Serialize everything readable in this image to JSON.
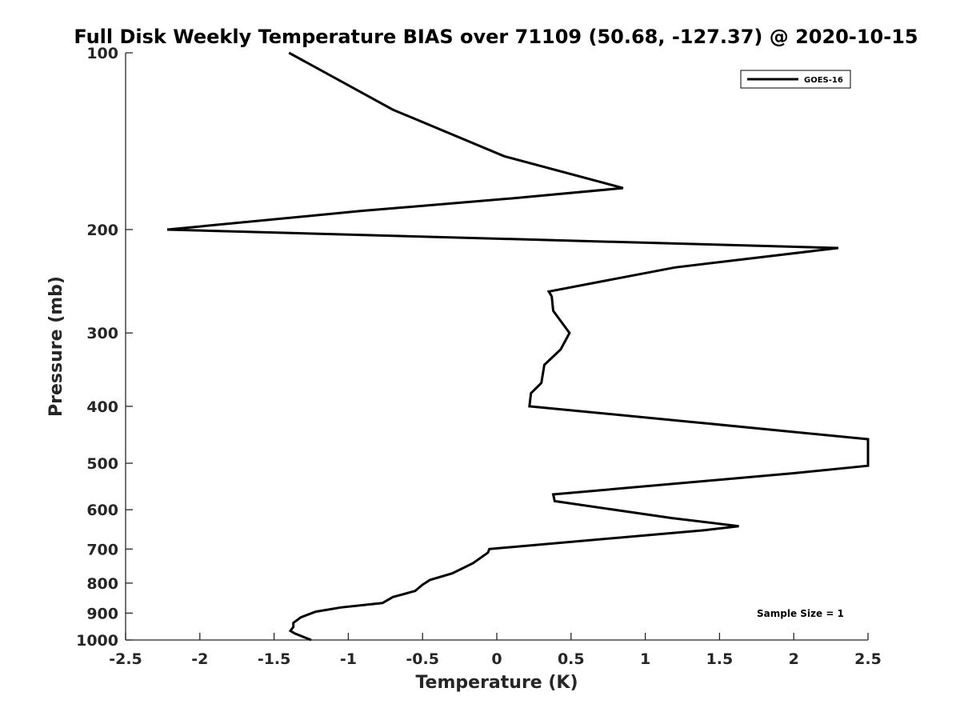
{
  "chart_data": {
    "type": "line",
    "title": "Full Disk Weekly Temperature BIAS over 71109 (50.68, -127.37) @ 2020-10-15",
    "xlabel": "Temperature (K)",
    "ylabel": "Pressure (mb)",
    "xlim": [
      -2.5,
      2.5
    ],
    "ylim": [
      100,
      1000
    ],
    "y_scale": "log",
    "y_reversed": true,
    "grid": false,
    "x_ticks": [
      -2.5,
      -2,
      -1.5,
      -1,
      -0.5,
      0,
      0.5,
      1,
      1.5,
      2,
      2.5
    ],
    "x_tick_labels": [
      "-2.5",
      "-2",
      "-1.5",
      "-1",
      "-0.5",
      "0",
      "0.5",
      "1",
      "1.5",
      "2",
      "2.5"
    ],
    "y_ticks": [
      100,
      200,
      300,
      400,
      500,
      600,
      700,
      800,
      900,
      1000
    ],
    "y_tick_labels": [
      "100",
      "200",
      "300",
      "400",
      "500",
      "600",
      "700",
      "800",
      "900",
      "1000"
    ],
    "legend_position": "top-right",
    "annotation": "Sample Size = 1",
    "series": [
      {
        "name": "GOES-16",
        "color": "#000000",
        "points": [
          {
            "x": -1.4,
            "p": 100
          },
          {
            "x": -0.7,
            "p": 125
          },
          {
            "x": 0.05,
            "p": 150
          },
          {
            "x": 0.85,
            "p": 170
          },
          {
            "x": 0.1,
            "p": 177
          },
          {
            "x": -0.92,
            "p": 186
          },
          {
            "x": -2.22,
            "p": 200
          },
          {
            "x": 2.3,
            "p": 215
          },
          {
            "x": 1.2,
            "p": 232
          },
          {
            "x": 0.35,
            "p": 255
          },
          {
            "x": 0.37,
            "p": 260
          },
          {
            "x": 0.38,
            "p": 275
          },
          {
            "x": 0.49,
            "p": 300
          },
          {
            "x": 0.43,
            "p": 320
          },
          {
            "x": 0.32,
            "p": 340
          },
          {
            "x": 0.3,
            "p": 365
          },
          {
            "x": 0.23,
            "p": 380
          },
          {
            "x": 0.22,
            "p": 400
          },
          {
            "x": 1.3,
            "p": 425
          },
          {
            "x": 2.5,
            "p": 455
          },
          {
            "x": 2.5,
            "p": 505
          },
          {
            "x": 2.0,
            "p": 520
          },
          {
            "x": 0.38,
            "p": 565
          },
          {
            "x": 0.39,
            "p": 580
          },
          {
            "x": 1.18,
            "p": 620
          },
          {
            "x": 1.63,
            "p": 640
          },
          {
            "x": 1.4,
            "p": 650
          },
          {
            "x": -0.05,
            "p": 700
          },
          {
            "x": -0.06,
            "p": 710
          },
          {
            "x": -0.16,
            "p": 740
          },
          {
            "x": -0.3,
            "p": 770
          },
          {
            "x": -0.45,
            "p": 790
          },
          {
            "x": -0.5,
            "p": 805
          },
          {
            "x": -0.55,
            "p": 825
          },
          {
            "x": -0.7,
            "p": 845
          },
          {
            "x": -0.77,
            "p": 865
          },
          {
            "x": -1.05,
            "p": 880
          },
          {
            "x": -1.22,
            "p": 895
          },
          {
            "x": -1.32,
            "p": 915
          },
          {
            "x": -1.37,
            "p": 935
          },
          {
            "x": -1.37,
            "p": 950
          },
          {
            "x": -1.39,
            "p": 965
          },
          {
            "x": -1.36,
            "p": 975
          },
          {
            "x": -1.25,
            "p": 1000
          }
        ]
      }
    ]
  }
}
